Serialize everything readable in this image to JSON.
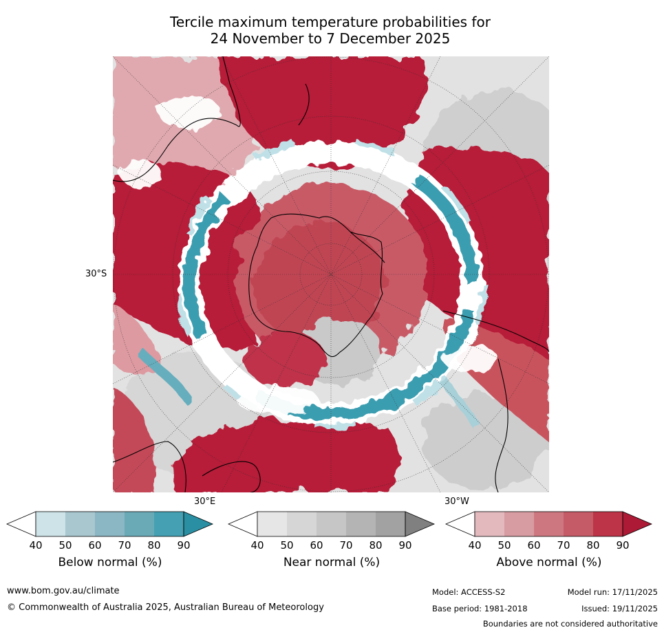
{
  "title": {
    "line1": "Tercile maximum temperature probabilities for",
    "line2": "24 November to 7 December 2025"
  },
  "map": {
    "projection": "south-polar-stereographic",
    "lat_label": "30°S",
    "lon_labels": {
      "east": "30°E",
      "west": "30°W"
    },
    "regions": {
      "antarctica": "Above normal",
      "southern_ocean_ring": "Below normal",
      "pacific_sector": "Near normal",
      "south_america": "Above normal",
      "australia": "Above normal",
      "new_zealand": "Above normal"
    }
  },
  "legends": [
    {
      "name": "Below normal (%)",
      "ticks": [
        "40",
        "50",
        "60",
        "70",
        "80",
        "90"
      ],
      "colors": [
        "#ffffff",
        "#cde3e8",
        "#a8c7cf",
        "#8bb6c3",
        "#6aaab7",
        "#44a0b2",
        "#2b8fa3"
      ]
    },
    {
      "name": "Near normal (%)",
      "ticks": [
        "40",
        "50",
        "60",
        "70",
        "80",
        "90"
      ],
      "colors": [
        "#ffffff",
        "#e6e6e6",
        "#d6d6d6",
        "#c6c6c6",
        "#b4b4b4",
        "#a2a2a2",
        "#808080"
      ]
    },
    {
      "name": "Above normal (%)",
      "ticks": [
        "40",
        "50",
        "60",
        "70",
        "80",
        "90"
      ],
      "colors": [
        "#ffffff",
        "#e3b9be",
        "#d79ca2",
        "#cd7880",
        "#c45b66",
        "#bd3347",
        "#ad1a35"
      ]
    }
  ],
  "footer": {
    "website": "www.bom.gov.au/climate",
    "copyright": "© Commonwealth of Australia 2025, Australian Bureau of Meteorology",
    "model": "Model: ACCESS-S2",
    "base_period": "Base period: 1981-2018",
    "model_run": "Model run: 17/11/2025",
    "issued": "Issued: 19/11/2025",
    "disclaimer": "Boundaries are not considered authoritative"
  },
  "colors": {
    "above_strong": "#b71c38",
    "above_mid": "#c9525d",
    "above_light": "#dd9aa1",
    "below": "#3a9db0",
    "below_light": "#bfe0e7",
    "near": "#d2d2d2",
    "coast": "#000000"
  }
}
